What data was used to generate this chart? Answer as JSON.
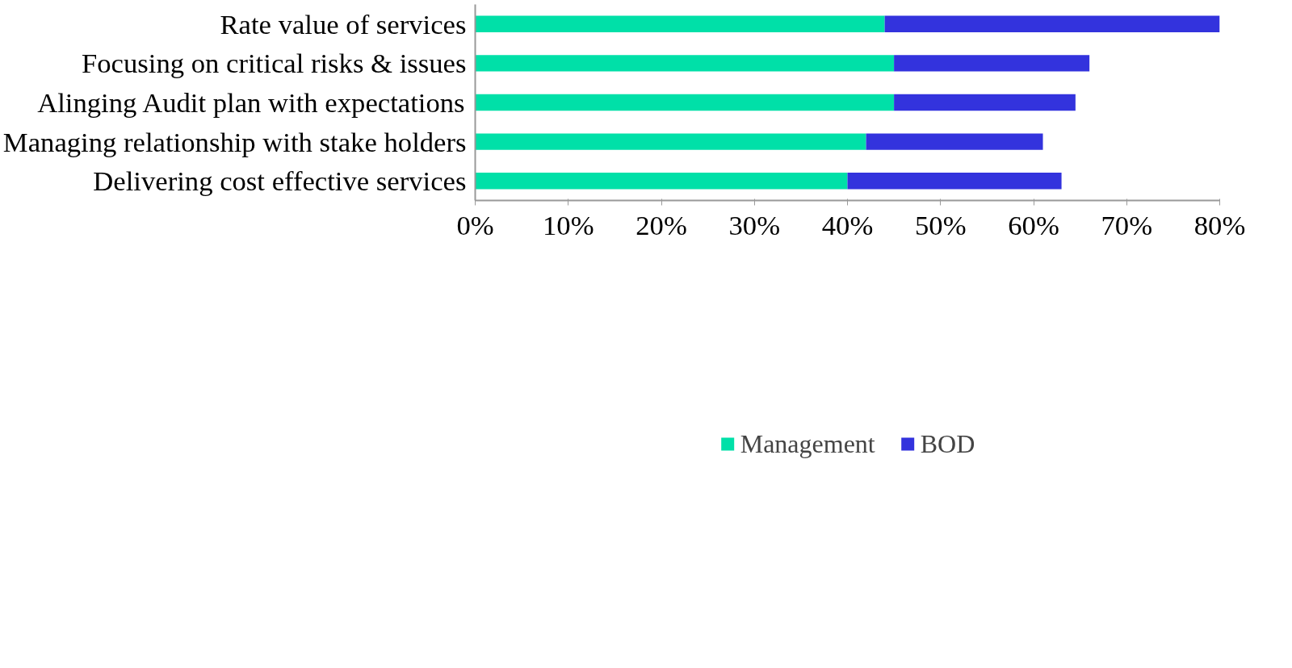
{
  "chart_data": {
    "type": "bar",
    "orientation": "horizontal",
    "stacked": true,
    "categories": [
      "Rate value of services",
      "Focusing on critical risks & issues",
      "Alinging Audit plan with expectations",
      "Managing relationship with stake holders",
      "Delivering cost effective services"
    ],
    "series": [
      {
        "name": "Management",
        "color": "#00e0a8",
        "values": [
          44,
          45,
          45,
          42,
          40
        ]
      },
      {
        "name": "BOD",
        "color": "#3333dd",
        "values": [
          36,
          21,
          19.5,
          19,
          23
        ]
      }
    ],
    "xlim": [
      0,
      80
    ],
    "xticks": [
      {
        "value": 0,
        "label": "0%"
      },
      {
        "value": 10,
        "label": "10%"
      },
      {
        "value": 20,
        "label": "20%"
      },
      {
        "value": 30,
        "label": "30%"
      },
      {
        "value": 40,
        "label": "40%"
      },
      {
        "value": 50,
        "label": "50%"
      },
      {
        "value": 60,
        "label": "60%"
      },
      {
        "value": 70,
        "label": "70%"
      },
      {
        "value": 80,
        "label": "80%"
      }
    ],
    "grid": false,
    "legend": "bottom"
  }
}
